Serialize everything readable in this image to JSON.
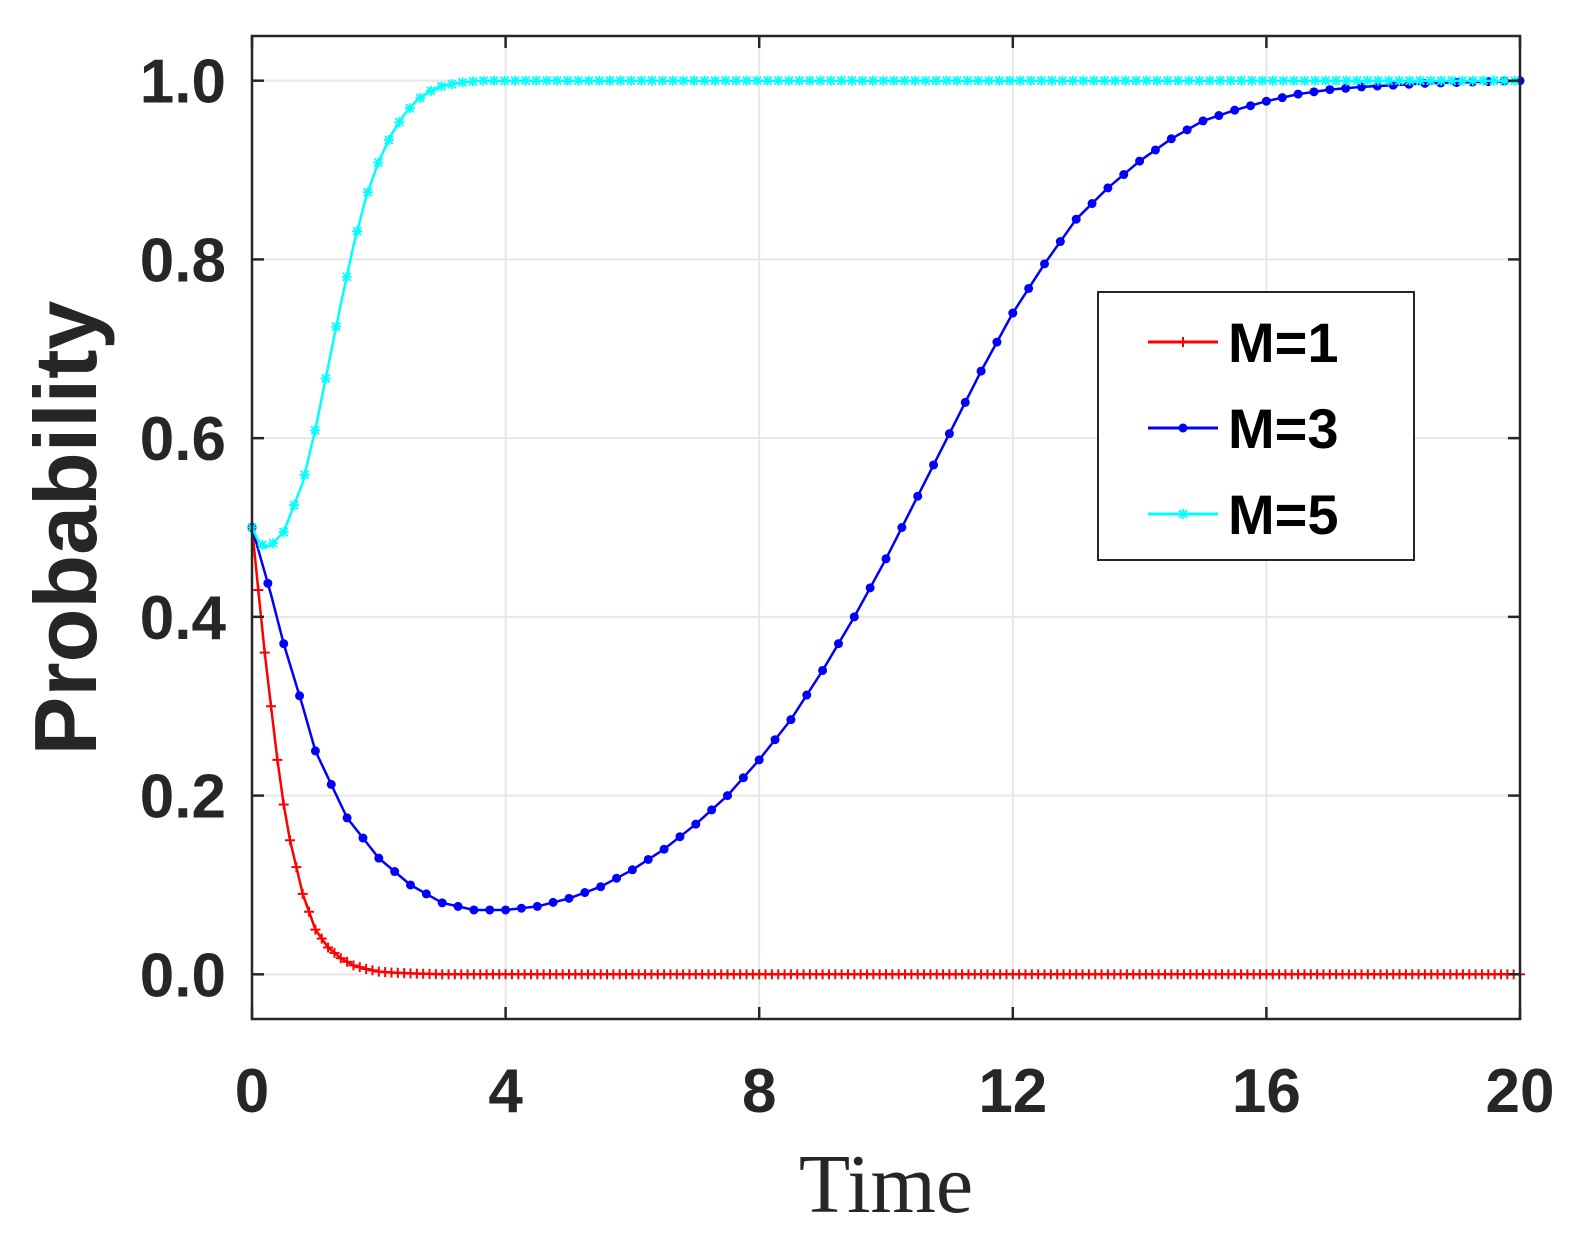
{
  "chart_data": {
    "type": "line",
    "title": "",
    "xlabel": "Time",
    "ylabel": "Probability",
    "xlim": [
      0,
      20
    ],
    "ylim": [
      -0.05,
      1.05
    ],
    "xticks": [
      0,
      4,
      8,
      12,
      16,
      20
    ],
    "xtick_labels": [
      "0",
      "4",
      "8",
      "12",
      "16",
      "20"
    ],
    "yticks": [
      0,
      0.2,
      0.4,
      0.6,
      0.8,
      1.0
    ],
    "ytick_labels": [
      "0.0",
      "0.2",
      "0.4",
      "0.6",
      "0.8",
      "1.0"
    ],
    "grid": true,
    "legend_position": "right-center",
    "series": [
      {
        "name": "M=1",
        "color": "#ff0000",
        "marker": "plus",
        "x": [
          0,
          0.1,
          0.2,
          0.3,
          0.4,
          0.5,
          0.6,
          0.7,
          0.8,
          0.9,
          1.0,
          1.2,
          1.4,
          1.6,
          1.8,
          2.0,
          2.2,
          2.5,
          3.0,
          4.0,
          6.0,
          10.0,
          15.0,
          20.0
        ],
        "values": [
          0.5,
          0.43,
          0.36,
          0.3,
          0.24,
          0.19,
          0.15,
          0.12,
          0.09,
          0.07,
          0.05,
          0.03,
          0.018,
          0.01,
          0.006,
          0.003,
          0.002,
          0.001,
          0.0,
          0.0,
          0.0,
          0.0,
          0.0,
          0.0
        ]
      },
      {
        "name": "M=3",
        "color": "#0000ff",
        "marker": "dot",
        "x": [
          0,
          0.1,
          0.2,
          0.3,
          0.5,
          0.8,
          1.0,
          1.5,
          2.0,
          2.5,
          3.0,
          3.5,
          4.0,
          4.5,
          5.0,
          5.5,
          6.0,
          6.5,
          7.0,
          7.5,
          8.0,
          8.5,
          9.0,
          9.5,
          10.0,
          10.5,
          11.0,
          11.5,
          12.0,
          12.5,
          13.0,
          13.5,
          14.0,
          14.5,
          15.0,
          15.5,
          16.0,
          16.5,
          17.0,
          17.5,
          18.0,
          18.5,
          19.0,
          19.5,
          20.0
        ],
        "values": [
          0.5,
          0.475,
          0.45,
          0.425,
          0.37,
          0.3,
          0.25,
          0.175,
          0.13,
          0.1,
          0.08,
          0.072,
          0.072,
          0.076,
          0.085,
          0.098,
          0.117,
          0.14,
          0.168,
          0.2,
          0.24,
          0.285,
          0.34,
          0.4,
          0.465,
          0.535,
          0.605,
          0.675,
          0.74,
          0.795,
          0.845,
          0.88,
          0.91,
          0.935,
          0.955,
          0.967,
          0.977,
          0.985,
          0.99,
          0.993,
          0.995,
          0.997,
          0.998,
          0.999,
          1.0
        ]
      },
      {
        "name": "M=5",
        "color": "#00ffff",
        "marker": "asterisk",
        "x": [
          0,
          0.1,
          0.2,
          0.3,
          0.5,
          0.8,
          1.0,
          1.2,
          1.4,
          1.6,
          1.8,
          2.0,
          2.2,
          2.4,
          2.6,
          2.8,
          3.0,
          3.3,
          3.6,
          4.0,
          5.0,
          8.0,
          12.0,
          16.0,
          20.0
        ],
        "values": [
          0.5,
          0.485,
          0.478,
          0.48,
          0.495,
          0.55,
          0.61,
          0.68,
          0.75,
          0.815,
          0.87,
          0.91,
          0.94,
          0.962,
          0.978,
          0.988,
          0.994,
          0.998,
          1.0,
          1.0,
          1.0,
          1.0,
          1.0,
          1.0,
          1.0
        ]
      }
    ]
  }
}
